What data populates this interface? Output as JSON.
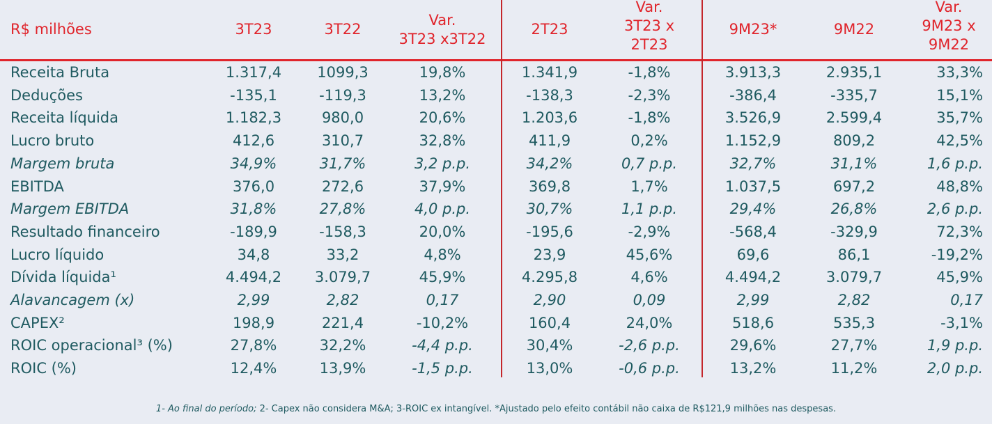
{
  "header": {
    "label": "R$ milhões",
    "cols": [
      "3T23",
      "3T22",
      "Var.\n3T23 x3T22",
      "2T23",
      "Var.\n3T23 x\n2T23",
      "9M23*",
      "9M22",
      "Var.\n9M23 x\n9M22"
    ]
  },
  "rows": [
    {
      "label": "Receita Bruta",
      "italic": false,
      "values": [
        "1.317,4",
        "1099,3",
        "19,8%",
        "1.341,9",
        "-1,8%",
        "3.913,3",
        "2.935,1",
        "33,3%"
      ]
    },
    {
      "label": "Deduções",
      "italic": false,
      "values": [
        "-135,1",
        "-119,3",
        "13,2%",
        "-138,3",
        "-2,3%",
        "-386,4",
        "-335,7",
        "15,1%"
      ]
    },
    {
      "label": "Receita líquida",
      "italic": false,
      "values": [
        "1.182,3",
        "980,0",
        "20,6%",
        "1.203,6",
        "-1,8%",
        "3.526,9",
        "2.599,4",
        "35,7%"
      ]
    },
    {
      "label": "Lucro bruto",
      "italic": false,
      "values": [
        "412,6",
        "310,7",
        "32,8%",
        "411,9",
        "0,2%",
        "1.152,9",
        "809,2",
        "42,5%"
      ]
    },
    {
      "label": "Margem bruta",
      "italic": true,
      "values": [
        "34,9%",
        "31,7%",
        "3,2 p.p.",
        "34,2%",
        "0,7 p.p.",
        "32,7%",
        "31,1%",
        "1,6 p.p."
      ]
    },
    {
      "label": "EBITDA",
      "italic": false,
      "values": [
        "376,0",
        "272,6",
        "37,9%",
        "369,8",
        "1,7%",
        "1.037,5",
        "697,2",
        "48,8%"
      ]
    },
    {
      "label": "Margem EBITDA",
      "italic": true,
      "values": [
        "31,8%",
        "27,8%",
        "4,0 p.p.",
        "30,7%",
        "1,1 p.p.",
        "29,4%",
        "26,8%",
        "2,6 p.p."
      ]
    },
    {
      "label": "Resultado financeiro",
      "italic": false,
      "values": [
        "-189,9",
        "-158,3",
        "20,0%",
        "-195,6",
        "-2,9%",
        "-568,4",
        "-329,9",
        "72,3%"
      ]
    },
    {
      "label": "Lucro líquido",
      "italic": false,
      "values": [
        "34,8",
        "33,2",
        "4,8%",
        "23,9",
        "45,6%",
        "69,6",
        "86,1",
        "-19,2%"
      ]
    },
    {
      "label": "Dívida líquida¹",
      "italic": false,
      "values": [
        "4.494,2",
        "3.079,7",
        "45,9%",
        "4.295,8",
        "4,6%",
        "4.494,2",
        "3.079,7",
        "45,9%"
      ]
    },
    {
      "label": "Alavancagem (x)",
      "italic": true,
      "values": [
        "2,99",
        "2,82",
        "0,17",
        "2,90",
        "0,09",
        "2,99",
        "2,82",
        "0,17"
      ]
    },
    {
      "label": "CAPEX²",
      "italic": false,
      "values": [
        "198,9",
        "221,4",
        "-10,2%",
        "160,4",
        "24,0%",
        "518,6",
        "535,3",
        "-3,1%"
      ]
    },
    {
      "label": "ROIC operacional³ (%)",
      "italic": false,
      "values": [
        "27,8%",
        "32,2%",
        "-4,4 p.p.",
        "30,4%",
        "-2,6 p.p.",
        "29,6%",
        "27,7%",
        "1,9 p.p."
      ],
      "italic_cols": [
        2,
        4,
        7
      ]
    },
    {
      "label": "ROIC (%)",
      "italic": false,
      "values": [
        "12,4%",
        "13,9%",
        "-1,5 p.p.",
        "13,0%",
        "-0,6 p.p.",
        "13,2%",
        "11,2%",
        "2,0 p.p."
      ],
      "italic_cols": [
        2,
        4,
        7
      ]
    }
  ],
  "footnote": {
    "part1": "1- Ao final do período;",
    "part2": " 2- Capex não considera M&A; 3-ROIC ex intangível. *Ajustado pelo efeito contábil não caixa de R$121,9 milhões nas despesas."
  },
  "colors": {
    "accent": "#e0242b",
    "text": "#1f5a60",
    "background": "#e9ecf3"
  }
}
